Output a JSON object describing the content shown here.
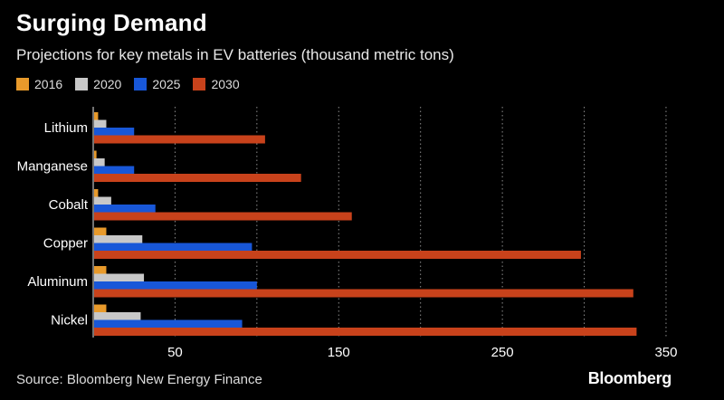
{
  "header": {
    "title": "Surging Demand",
    "subtitle": "Projections for key metals in EV batteries (thousand metric tons)"
  },
  "footer": {
    "source": "Source: Bloomberg New Energy Finance",
    "brand": "Bloomberg"
  },
  "colors": {
    "background": "#000000",
    "2016": "#e89a2b",
    "2020": "#c8c8c8",
    "2025": "#1857d8",
    "2030": "#c8421b",
    "grid": "#ffffff",
    "text": "#ffffff"
  },
  "chart_data": {
    "type": "bar",
    "orientation": "horizontal",
    "categories": [
      "Lithium",
      "Manganese",
      "Cobalt",
      "Copper",
      "Aluminum",
      "Nickel"
    ],
    "series": [
      {
        "name": "2016",
        "values": [
          3,
          2,
          3,
          8,
          8,
          8
        ]
      },
      {
        "name": "2020",
        "values": [
          8,
          7,
          11,
          30,
          31,
          29
        ]
      },
      {
        "name": "2025",
        "values": [
          25,
          25,
          38,
          97,
          100,
          91
        ]
      },
      {
        "name": "2030",
        "values": [
          105,
          127,
          158,
          298,
          330,
          332
        ]
      }
    ],
    "xlim": [
      0,
      355
    ],
    "xticks": [
      50,
      150,
      250,
      350
    ],
    "grid": true,
    "legend": "top-left",
    "title": "Surging Demand",
    "subtitle": "Projections for key metals in EV batteries (thousand metric tons)",
    "xlabel": "",
    "ylabel": ""
  }
}
